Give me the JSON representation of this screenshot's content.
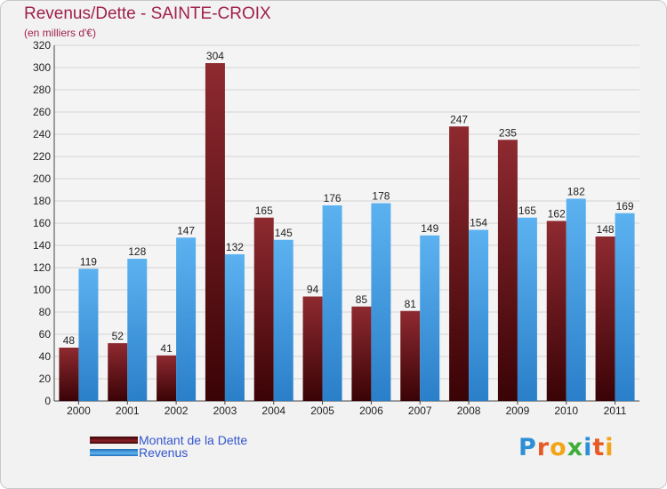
{
  "chart_data": {
    "type": "bar",
    "title": "Revenus/Dette - SAINTE-CROIX",
    "subtitle": "(en milliers d'€)",
    "categories": [
      "2000",
      "2001",
      "2002",
      "2003",
      "2004",
      "2005",
      "2006",
      "2007",
      "2008",
      "2009",
      "2010",
      "2011"
    ],
    "series": [
      {
        "name": "Montant de la Dette",
        "values": [
          48,
          52,
          41,
          304,
          165,
          94,
          85,
          81,
          247,
          235,
          162,
          148
        ],
        "color": "#7a1a1f"
      },
      {
        "name": "Revenus",
        "values": [
          119,
          128,
          147,
          132,
          145,
          176,
          178,
          149,
          154,
          165,
          182,
          169
        ],
        "color": "#4aa3e6"
      }
    ],
    "ylim": [
      0,
      320
    ],
    "yticks": [
      0,
      20,
      40,
      60,
      80,
      100,
      120,
      140,
      160,
      180,
      200,
      220,
      240,
      260,
      280,
      300,
      320
    ],
    "grid": true,
    "legend_position": "bottom-left"
  },
  "logo": {
    "text": "Proxiti",
    "letters": [
      {
        "c": "P",
        "color": "#2e8fd6"
      },
      {
        "c": "r",
        "color": "#e85a24"
      },
      {
        "c": "o",
        "color": "#f2a516"
      },
      {
        "c": "x",
        "color": "#3fae3a"
      },
      {
        "c": "i",
        "color": "#2e8fd6"
      },
      {
        "c": "t",
        "color": "#e85a24"
      },
      {
        "c": "i",
        "color": "#f2a516"
      }
    ]
  }
}
